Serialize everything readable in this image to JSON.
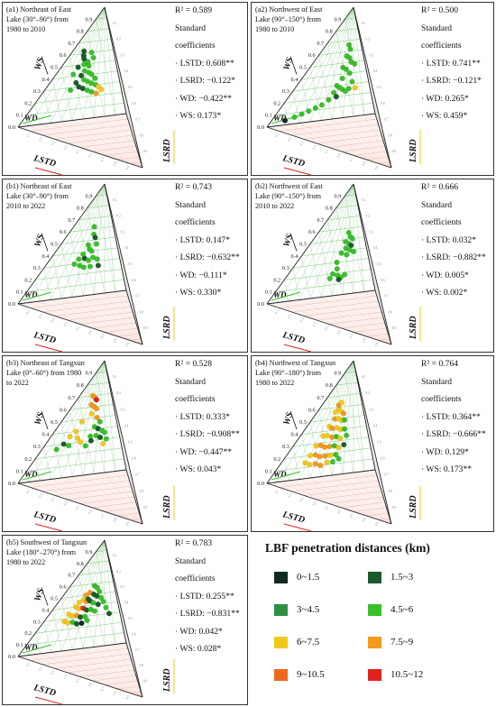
{
  "chart_data": [
    {
      "type": "scatter",
      "title": "(a1) Northeast of East\nLake (30°–90°) from\n1980 to 2010",
      "r2": "R² = 0.589",
      "coef_label": "Standard\ncoefficients",
      "coefs": [
        "· LSTD: 0.608**",
        "· LSRD: −0.122*",
        "· WD: −0.422**",
        "· WS: 0.173*"
      ],
      "axes": {
        "x": "LSTD",
        "y": "WS",
        "z": "LSRD",
        "w": "WD"
      },
      "ws_ticks": [
        "0.1",
        "0.2",
        "0.3",
        "0.4",
        "0.5",
        "0.6",
        "0.7",
        "0.8",
        "0.9"
      ],
      "origin_label": "0.0",
      "points": [
        [
          0.3,
          0.62,
          "dkgreen"
        ],
        [
          0.34,
          0.58,
          "dkgreen"
        ],
        [
          0.38,
          0.55,
          "dkgreen"
        ],
        [
          0.33,
          0.48,
          "dkgreen"
        ],
        [
          0.42,
          0.5,
          "green"
        ],
        [
          0.48,
          0.52,
          "green"
        ],
        [
          0.52,
          0.48,
          "green"
        ],
        [
          0.47,
          0.44,
          "green"
        ],
        [
          0.55,
          0.42,
          "green"
        ],
        [
          0.6,
          0.4,
          "green"
        ],
        [
          0.44,
          0.4,
          "dkgreen"
        ],
        [
          0.5,
          0.36,
          "green"
        ],
        [
          0.56,
          0.34,
          "green"
        ],
        [
          0.62,
          0.32,
          "green"
        ],
        [
          0.68,
          0.3,
          "green"
        ],
        [
          0.4,
          0.34,
          "dkgreen"
        ],
        [
          0.46,
          0.3,
          "dkgreen"
        ],
        [
          0.52,
          0.28,
          "dkgreen"
        ],
        [
          0.58,
          0.26,
          "green"
        ],
        [
          0.72,
          0.28,
          "yellow"
        ],
        [
          0.76,
          0.25,
          "yellow"
        ],
        [
          0.64,
          0.24,
          "green"
        ],
        [
          0.7,
          0.22,
          "orange"
        ],
        [
          0.36,
          0.28,
          "green"
        ],
        [
          0.3,
          0.42,
          "green"
        ],
        [
          0.57,
          0.55,
          "green"
        ],
        [
          0.5,
          0.6,
          "green"
        ],
        [
          0.66,
          0.36,
          "green"
        ]
      ]
    },
    {
      "type": "scatter",
      "title": "(a2) Northwest of East\nLake (90°–150°) from\n1980 to 2010",
      "r2": "R² = 0.500",
      "coef_label": "Standard\ncoefficients",
      "coefs": [
        "· LSTD: 0.741**",
        "· LSRD: −0.121*",
        "· WD: 0.265*",
        "· WS: 0.459*"
      ],
      "axes": {
        "x": "LSTD",
        "y": "WS",
        "z": "LSRD",
        "w": "WD"
      },
      "ws_ticks": [
        "0.1",
        "0.2",
        "0.3",
        "0.4",
        "0.5",
        "0.6",
        "0.7",
        "0.8",
        "0.9"
      ],
      "origin_label": "0.0",
      "points": [
        [
          0.68,
          0.66,
          "green"
        ],
        [
          0.72,
          0.62,
          "green"
        ],
        [
          0.66,
          0.56,
          "green"
        ],
        [
          0.72,
          0.54,
          "green"
        ],
        [
          0.76,
          0.5,
          "green"
        ],
        [
          0.82,
          0.48,
          "green"
        ],
        [
          0.62,
          0.46,
          "green"
        ],
        [
          0.68,
          0.44,
          "green"
        ],
        [
          0.64,
          0.36,
          "green"
        ],
        [
          0.58,
          0.3,
          "green"
        ],
        [
          0.62,
          0.28,
          "green"
        ],
        [
          0.66,
          0.26,
          "green"
        ],
        [
          0.7,
          0.24,
          "green"
        ],
        [
          0.74,
          0.26,
          "green"
        ],
        [
          0.56,
          0.24,
          "green"
        ],
        [
          0.52,
          0.18,
          "green"
        ],
        [
          0.46,
          0.14,
          "green"
        ],
        [
          0.4,
          0.12,
          "green"
        ],
        [
          0.34,
          0.1,
          "green"
        ],
        [
          0.28,
          0.08,
          "green"
        ],
        [
          0.22,
          0.06,
          "green"
        ],
        [
          0.14,
          0.04,
          "black"
        ],
        [
          0.78,
          0.32,
          "green"
        ],
        [
          0.82,
          0.26,
          "yellow"
        ],
        [
          0.6,
          0.2,
          "dkgreen"
        ],
        [
          0.74,
          0.4,
          "green"
        ]
      ]
    },
    {
      "type": "scatter",
      "title": "(b1) Northeast of East\nLake (30°–90°) from\n2010 to 2022",
      "r2": "R² = 0.743",
      "coef_label": "Standard\ncoefficients",
      "coefs": [
        "· LSTD: 0.147*",
        "· LSRD: −0.632**",
        "· WD: −0.111*",
        "· WS: 0.330*"
      ],
      "axes": {
        "x": "LSTD",
        "y": "WS",
        "z": "LSRD",
        "w": "WD"
      },
      "ws_ticks": [
        "0.1",
        "0.2",
        "0.3",
        "0.4",
        "0.5",
        "0.6",
        "0.7",
        "0.8",
        "0.9"
      ],
      "origin_label": "0.0",
      "points": [
        [
          0.55,
          0.62,
          "green"
        ],
        [
          0.58,
          0.55,
          "green"
        ],
        [
          0.62,
          0.52,
          "dkgreen"
        ],
        [
          0.52,
          0.46,
          "green"
        ],
        [
          0.56,
          0.42,
          "green"
        ],
        [
          0.6,
          0.4,
          "green"
        ],
        [
          0.48,
          0.38,
          "green"
        ],
        [
          0.44,
          0.34,
          "green"
        ],
        [
          0.52,
          0.34,
          "dkgreen"
        ],
        [
          0.58,
          0.32,
          "green"
        ],
        [
          0.64,
          0.34,
          "green"
        ],
        [
          0.7,
          0.32,
          "green"
        ],
        [
          0.4,
          0.3,
          "green"
        ],
        [
          0.48,
          0.28,
          "green"
        ],
        [
          0.54,
          0.26,
          "green"
        ],
        [
          0.62,
          0.26,
          "green"
        ],
        [
          0.72,
          0.26,
          "dkgreen"
        ],
        [
          0.66,
          0.46,
          "green"
        ]
      ]
    },
    {
      "type": "scatter",
      "title": "(b2) Northwest of East\nLake (90°–150°) from\n2010 to 2022",
      "r2": "R² = 0.666",
      "coef_label": "Standard\ncoefficients",
      "coefs": [
        "· LSTD: 0.032*",
        "· LSRD: −0.882**",
        "· WD: 0.005*",
        "· WS: 0.002*"
      ],
      "axes": {
        "x": "LSTD",
        "y": "WS",
        "z": "LSRD",
        "w": "WD"
      },
      "ws_ticks": [
        "0.1",
        "0.2",
        "0.3",
        "0.4",
        "0.5",
        "0.6",
        "0.7",
        "0.8",
        "0.9"
      ],
      "origin_label": "0.0",
      "points": [
        [
          0.7,
          0.56,
          "green"
        ],
        [
          0.74,
          0.52,
          "green"
        ],
        [
          0.78,
          0.5,
          "green"
        ],
        [
          0.66,
          0.48,
          "green"
        ],
        [
          0.72,
          0.46,
          "green"
        ],
        [
          0.76,
          0.44,
          "dkgreen"
        ],
        [
          0.68,
          0.42,
          "green"
        ],
        [
          0.74,
          0.4,
          "green"
        ],
        [
          0.62,
          0.38,
          "green"
        ],
        [
          0.8,
          0.38,
          "green"
        ],
        [
          0.7,
          0.36,
          "green"
        ],
        [
          0.58,
          0.3,
          "green"
        ],
        [
          0.6,
          0.24,
          "green"
        ],
        [
          0.56,
          0.2,
          "green"
        ],
        [
          0.62,
          0.18,
          "green"
        ],
        [
          0.66,
          0.16,
          "green"
        ],
        [
          0.7,
          0.18,
          "green"
        ],
        [
          0.64,
          0.14,
          "dkgreen"
        ],
        [
          0.54,
          0.16,
          "green"
        ]
      ]
    },
    {
      "type": "scatter",
      "title": "(b3) Northeast of Tangxun\nLake (0°–60°) from 1980\nto 2022",
      "r2": "R² = 0.528",
      "coef_label": "Standard\ncoefficients",
      "coefs": [
        "· LSTD: 0.333*",
        "· LSRD: −0.908**",
        "· WD: −0.447**",
        "· WS: 0.043*"
      ],
      "axes": {
        "x": "LSTD",
        "y": "WS",
        "z": "LSRD",
        "w": "WD"
      },
      "ws_ticks": [
        "0.1",
        "0.2",
        "0.3",
        "0.4",
        "0.5",
        "0.6",
        "0.7",
        "0.8",
        "0.9"
      ],
      "origin_label": "0.0",
      "points": [
        [
          0.44,
          0.7,
          "orange"
        ],
        [
          0.52,
          0.68,
          "orange"
        ],
        [
          0.58,
          0.66,
          "red"
        ],
        [
          0.48,
          0.62,
          "orange"
        ],
        [
          0.56,
          0.6,
          "orange"
        ],
        [
          0.62,
          0.58,
          "orange"
        ],
        [
          0.54,
          0.54,
          "yellow"
        ],
        [
          0.66,
          0.5,
          "orange"
        ],
        [
          0.72,
          0.46,
          "green"
        ],
        [
          0.64,
          0.42,
          "green"
        ],
        [
          0.7,
          0.4,
          "dkgreen"
        ],
        [
          0.76,
          0.38,
          "green"
        ],
        [
          0.8,
          0.36,
          "green"
        ],
        [
          0.68,
          0.34,
          "green"
        ],
        [
          0.74,
          0.32,
          "dkgreen"
        ],
        [
          0.6,
          0.34,
          "green"
        ],
        [
          0.36,
          0.4,
          "yellow"
        ],
        [
          0.3,
          0.36,
          "yellow"
        ],
        [
          0.42,
          0.34,
          "yellow"
        ],
        [
          0.26,
          0.3,
          "dkgreen"
        ],
        [
          0.34,
          0.28,
          "green"
        ],
        [
          0.2,
          0.26,
          "green"
        ],
        [
          0.48,
          0.3,
          "yellow"
        ],
        [
          0.82,
          0.3,
          "green"
        ],
        [
          0.78,
          0.26,
          "yellow"
        ],
        [
          0.56,
          0.26,
          "green"
        ],
        [
          0.4,
          0.48,
          "yellow"
        ],
        [
          0.62,
          0.3,
          "dkgreen"
        ]
      ]
    },
    {
      "type": "scatter",
      "title": "(b4) Northwest of Tangxun\nLake (90°–180°) from\n1980 to 2022",
      "r2": "R² = 0.764",
      "coef_label": "Standard\ncoefficients",
      "coefs": [
        "· LSTD: 0.364**",
        "· LSRD: −0.666**",
        "· WD: 0.129*",
        "· WS: 0.173**"
      ],
      "axes": {
        "x": "LSTD",
        "y": "WS",
        "z": "LSRD",
        "w": "WD"
      },
      "ws_ticks": [
        "0.1",
        "0.2",
        "0.3",
        "0.4",
        "0.5",
        "0.6",
        "0.7",
        "0.8",
        "0.9"
      ],
      "origin_label": "0.0",
      "points": [
        [
          0.42,
          0.56,
          "yellow"
        ],
        [
          0.48,
          0.58,
          "yellow"
        ],
        [
          0.54,
          0.56,
          "yellow"
        ],
        [
          0.6,
          0.54,
          "orange"
        ],
        [
          0.46,
          0.5,
          "orange"
        ],
        [
          0.52,
          0.5,
          "yellow"
        ],
        [
          0.58,
          0.48,
          "yellow"
        ],
        [
          0.64,
          0.48,
          "green"
        ],
        [
          0.4,
          0.44,
          "yellow"
        ],
        [
          0.46,
          0.42,
          "orange"
        ],
        [
          0.54,
          0.42,
          "yellow"
        ],
        [
          0.6,
          0.4,
          "yellow"
        ],
        [
          0.66,
          0.4,
          "green"
        ],
        [
          0.36,
          0.36,
          "yellow"
        ],
        [
          0.42,
          0.36,
          "yellow"
        ],
        [
          0.5,
          0.34,
          "orange"
        ],
        [
          0.56,
          0.34,
          "green"
        ],
        [
          0.62,
          0.32,
          "yellow"
        ],
        [
          0.7,
          0.34,
          "green"
        ],
        [
          0.32,
          0.28,
          "yellow"
        ],
        [
          0.38,
          0.28,
          "orange"
        ],
        [
          0.44,
          0.26,
          "orange"
        ],
        [
          0.5,
          0.26,
          "orange"
        ],
        [
          0.56,
          0.26,
          "green"
        ],
        [
          0.62,
          0.24,
          "yellow"
        ],
        [
          0.68,
          0.26,
          "dkgreen"
        ],
        [
          0.3,
          0.2,
          "yellow"
        ],
        [
          0.36,
          0.2,
          "orange"
        ],
        [
          0.42,
          0.18,
          "orange"
        ],
        [
          0.48,
          0.18,
          "orange"
        ],
        [
          0.54,
          0.18,
          "yellow"
        ],
        [
          0.6,
          0.18,
          "green"
        ],
        [
          0.28,
          0.14,
          "yellow"
        ],
        [
          0.34,
          0.12,
          "yellow"
        ],
        [
          0.4,
          0.12,
          "orange"
        ],
        [
          0.46,
          0.1,
          "orange"
        ],
        [
          0.52,
          0.12,
          "yellow"
        ],
        [
          0.58,
          0.12,
          "green"
        ],
        [
          0.64,
          0.14,
          "green"
        ],
        [
          0.44,
          0.62,
          "orange"
        ],
        [
          0.5,
          0.64,
          "yellow"
        ]
      ]
    },
    {
      "type": "scatter",
      "title": "(b5) Southwest of Tangxun\nLake (180°–270°) from\n1980 to 2022",
      "r2": "R² = 0.783",
      "coef_label": "Standard\ncoefficients",
      "coefs": [
        "· LSTD: 0.255**",
        "· LSRD: −0.831**",
        "· WD: 0.042*",
        "· WS: 0.028*"
      ],
      "axes": {
        "x": "LSTD",
        "y": "WS",
        "z": "LSRD",
        "w": "WD"
      },
      "ws_ticks": [
        "0.1",
        "0.2",
        "0.3",
        "0.4",
        "0.5",
        "0.6",
        "0.7",
        "0.8",
        "0.9"
      ],
      "origin_label": "0.0",
      "points": [
        [
          0.58,
          0.58,
          "green"
        ],
        [
          0.64,
          0.56,
          "green"
        ],
        [
          0.7,
          0.52,
          "green"
        ],
        [
          0.52,
          0.52,
          "orange"
        ],
        [
          0.6,
          0.5,
          "dkgreen"
        ],
        [
          0.66,
          0.48,
          "dkgreen"
        ],
        [
          0.74,
          0.46,
          "green"
        ],
        [
          0.44,
          0.46,
          "yellow"
        ],
        [
          0.5,
          0.44,
          "orange"
        ],
        [
          0.56,
          0.44,
          "dkgreen"
        ],
        [
          0.62,
          0.42,
          "green"
        ],
        [
          0.7,
          0.4,
          "dkgreen"
        ],
        [
          0.78,
          0.42,
          "green"
        ],
        [
          0.36,
          0.4,
          "yellow"
        ],
        [
          0.42,
          0.38,
          "yellow"
        ],
        [
          0.48,
          0.38,
          "red"
        ],
        [
          0.54,
          0.36,
          "dkgreen"
        ],
        [
          0.6,
          0.36,
          "green"
        ],
        [
          0.66,
          0.34,
          "green"
        ],
        [
          0.3,
          0.34,
          "yellow"
        ],
        [
          0.36,
          0.32,
          "yellow"
        ],
        [
          0.42,
          0.32,
          "orange"
        ],
        [
          0.48,
          0.3,
          "dkgreen"
        ],
        [
          0.54,
          0.3,
          "green"
        ],
        [
          0.28,
          0.28,
          "yellow"
        ],
        [
          0.34,
          0.26,
          "yellow"
        ],
        [
          0.4,
          0.26,
          "green"
        ],
        [
          0.46,
          0.24,
          "dkgreen"
        ],
        [
          0.52,
          0.24,
          "black"
        ],
        [
          0.58,
          0.26,
          "green"
        ],
        [
          0.82,
          0.36,
          "green"
        ],
        [
          0.86,
          0.3,
          "dkgreen"
        ],
        [
          0.38,
          0.44,
          "yellow"
        ],
        [
          0.46,
          0.5,
          "orange"
        ],
        [
          0.52,
          0.46,
          "dkgreen"
        ]
      ]
    }
  ],
  "legend": {
    "title": "LBF penetration distances (km)",
    "items": [
      {
        "label": "0~1.5",
        "color": "#0f2a1f"
      },
      {
        "label": "1.5~3",
        "color": "#1c5a2c"
      },
      {
        "label": "3~4.5",
        "color": "#2d8f44"
      },
      {
        "label": "4.5~6",
        "color": "#39c02b"
      },
      {
        "label": "6~7.5",
        "color": "#f2c81b"
      },
      {
        "label": "7.5~9",
        "color": "#f29a1c"
      },
      {
        "label": "9~10.5",
        "color": "#ec6a1c"
      },
      {
        "label": "10.5~12",
        "color": "#e2221f"
      }
    ]
  },
  "colors": {
    "black": "#0f2a1f",
    "dkgreen": "#1c5a2c",
    "mdgreen": "#2d8f44",
    "green": "#39c02b",
    "yellow": "#f2c81b",
    "orange": "#f29a1c",
    "dkorange": "#ec6a1c",
    "red": "#e2221f",
    "grid": "#6bbf6b",
    "floor": "#e7a79a"
  }
}
